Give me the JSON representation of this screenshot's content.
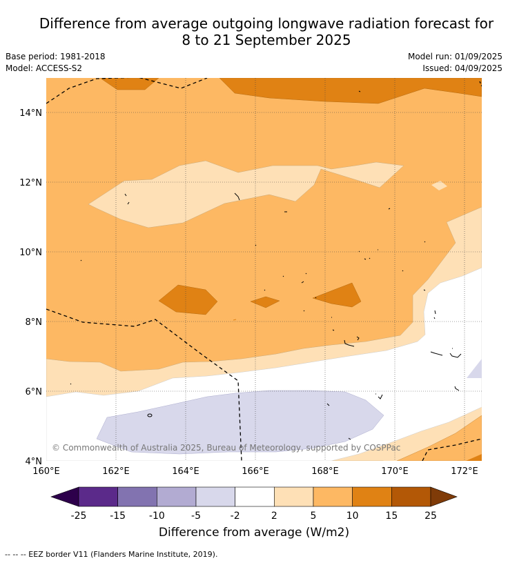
{
  "header": {
    "title_line1": "Difference from average outgoing longwave radiation forecast for",
    "title_line2": "8 to 21 September 2025",
    "base_period": "Base period: 1981-2018",
    "model": "Model: ACCESS-S2",
    "model_run": "Model run: 01/09/2025",
    "issued": "Issued: 04/09/2025"
  },
  "map": {
    "lat_labels": [
      "14°N",
      "12°N",
      "10°N",
      "8°N",
      "6°N",
      "4°N"
    ],
    "lon_labels": [
      "160°E",
      "162°E",
      "164°E",
      "166°E",
      "168°E",
      "170°E",
      "172°E"
    ],
    "copyright": "© Commonwealth of Australia 2025, Bureau of Meteorology, supported by COSPPac"
  },
  "colorbar": {
    "labels": [
      "-25",
      "-15",
      "-10",
      "-5",
      "-2",
      "2",
      "5",
      "10",
      "15",
      "25"
    ],
    "colors": [
      "#2d004b",
      "#5b2a8a",
      "#8273b0",
      "#b2abd2",
      "#d8d8eb",
      "#ffffff",
      "#fee0b6",
      "#fdb863",
      "#e08214",
      "#b35806",
      "#7f3b08"
    ],
    "title": "Difference from average (W/m2)"
  },
  "legend": {
    "eez_text": "-- -- -- EEZ border V11 (Flanders Marine Institute, 2019)."
  }
}
